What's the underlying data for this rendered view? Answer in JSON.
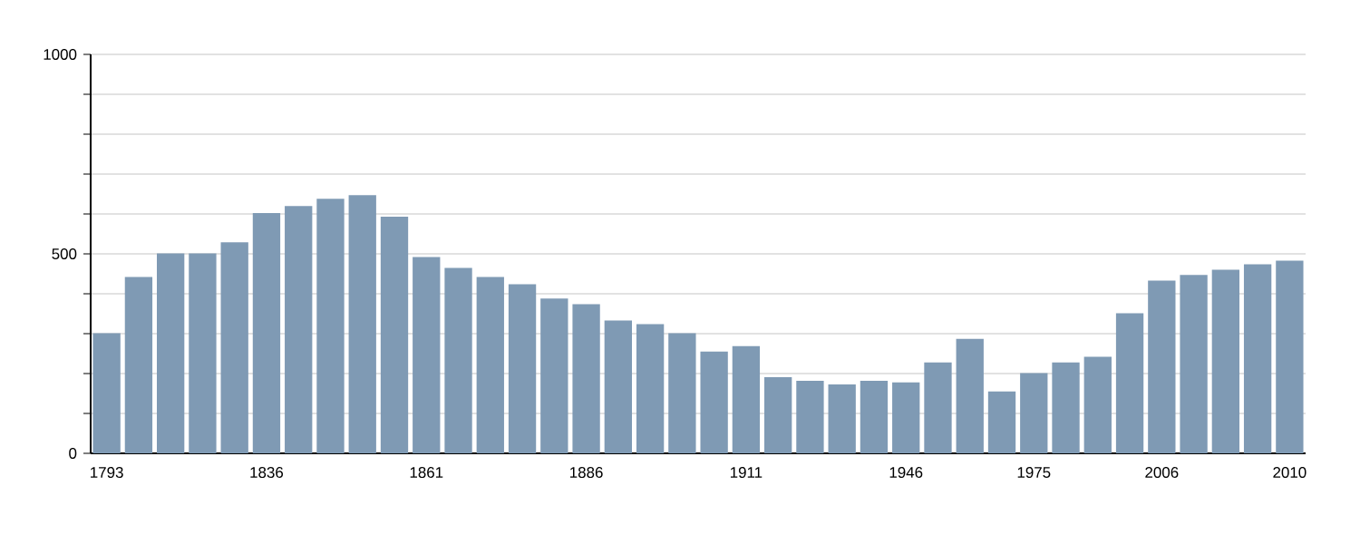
{
  "chart_data": {
    "type": "bar",
    "categories": [
      "1793",
      null,
      null,
      null,
      null,
      "1836",
      null,
      null,
      null,
      null,
      "1861",
      null,
      null,
      null,
      null,
      "1886",
      null,
      null,
      null,
      null,
      "1911",
      null,
      null,
      null,
      null,
      "1946",
      null,
      null,
      null,
      "1975",
      null,
      null,
      null,
      "2006",
      null,
      null,
      null,
      "2010"
    ],
    "values": [
      301,
      442,
      501,
      501,
      529,
      602,
      620,
      638,
      647,
      593,
      492,
      465,
      442,
      424,
      388,
      374,
      333,
      324,
      301,
      255,
      269,
      191,
      182,
      173,
      182,
      178,
      228,
      287,
      155,
      201,
      228,
      242,
      351,
      433,
      447,
      460,
      474,
      483
    ],
    "color": "#7f9ab4",
    "ylim": [
      0,
      1000
    ],
    "yticks": [
      0,
      {
        "value": 100,
        "label": null
      },
      {
        "value": 200,
        "label": null
      },
      {
        "value": 300,
        "label": null
      },
      {
        "value": 400,
        "label": null
      },
      500,
      {
        "value": 600,
        "label": null
      },
      {
        "value": 700,
        "label": null
      },
      {
        "value": 800,
        "label": null
      },
      {
        "value": 900,
        "label": null
      },
      1000
    ],
    "grid": "y"
  }
}
